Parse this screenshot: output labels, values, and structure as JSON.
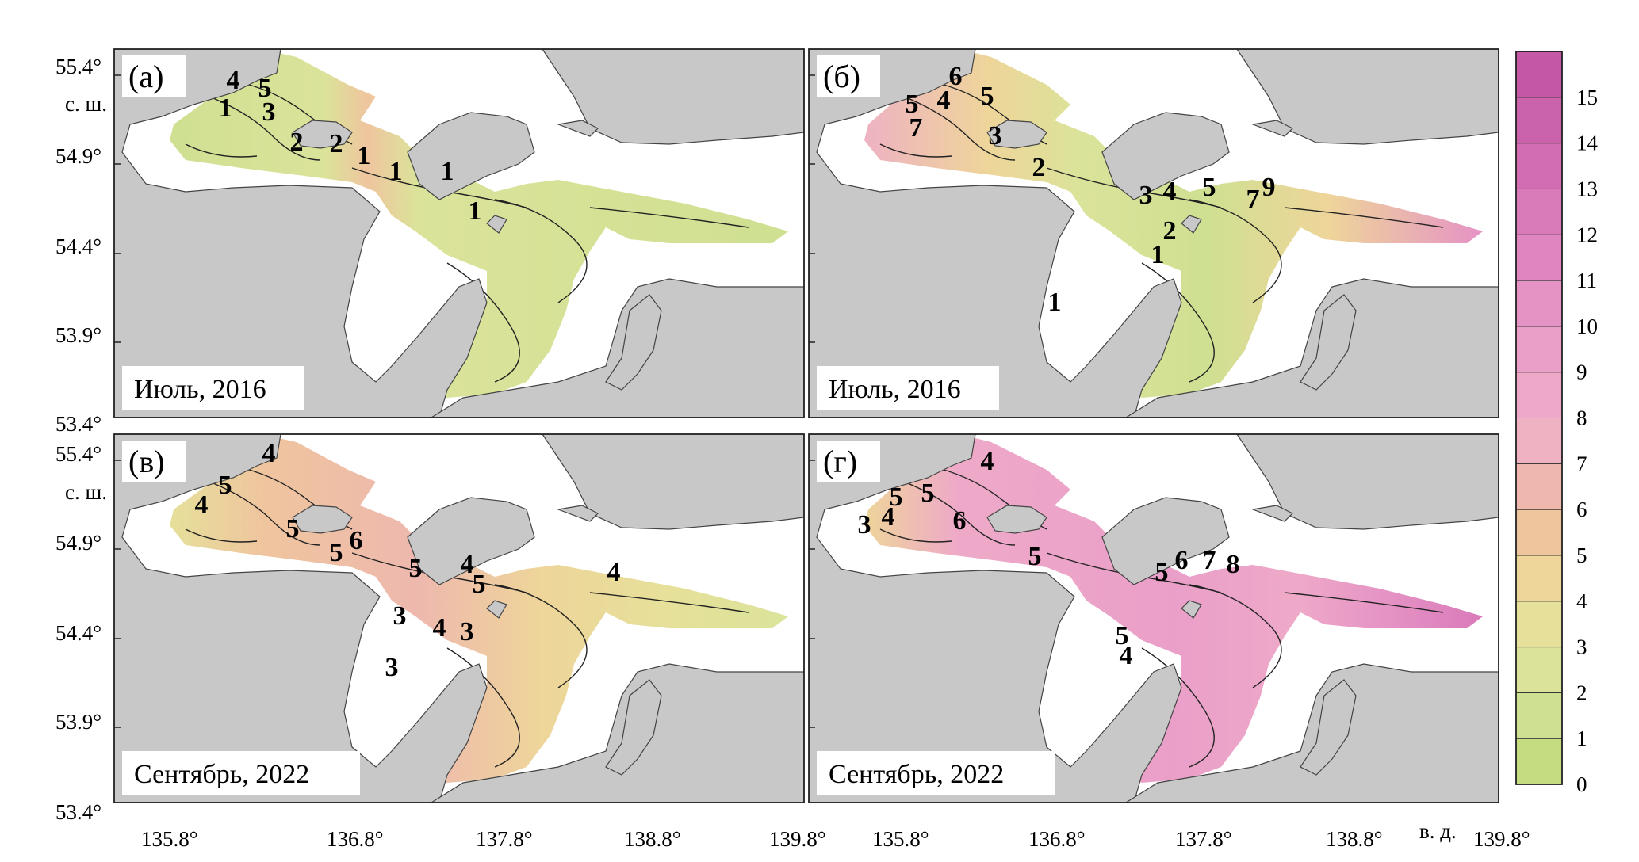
{
  "colors": {
    "land": "#c8c8c8",
    "land_stroke": "#444444",
    "sea": "#ffffff",
    "contour": "#222222"
  },
  "y_axis": {
    "ticks": [
      "55.4°",
      "54.9°",
      "54.4°",
      "53.9°",
      "53.4°"
    ],
    "unit": "с. ш."
  },
  "x_axis": {
    "ticks_left": [
      "135.8°",
      "136.8°",
      "137.8°",
      "138.8°",
      "139.8°"
    ],
    "ticks_right": [
      "135.8°",
      "136.8°",
      "137.8°",
      "138.8°",
      "139.8°"
    ],
    "unit": "в. д."
  },
  "color_scale": {
    "ticks": [
      "0",
      "1",
      "2",
      "3",
      "4",
      "5",
      "6",
      "7",
      "8",
      "9",
      "10",
      "11",
      "12",
      "13",
      "14",
      "15"
    ],
    "colors": [
      "#c5dc80",
      "#cfe092",
      "#dbe39a",
      "#e6e09a",
      "#eed59a",
      "#efc59e",
      "#eeb8ae",
      "#eeb2c2",
      "#eea9c8",
      "#ea9fc8",
      "#e592c5",
      "#df86c0",
      "#d97ab9",
      "#d26db3",
      "#cb62ac",
      "#c458a6"
    ]
  },
  "panels": [
    {
      "id": "a",
      "label": "(а)",
      "period": "Июль, 2016",
      "contour_labels": [
        {
          "text": "4",
          "x": 150,
          "y": 50
        },
        {
          "text": "5",
          "x": 190,
          "y": 60
        },
        {
          "text": "1",
          "x": 140,
          "y": 85
        },
        {
          "text": "3",
          "x": 195,
          "y": 90
        },
        {
          "text": "2",
          "x": 230,
          "y": 128
        },
        {
          "text": "2",
          "x": 280,
          "y": 130
        },
        {
          "text": "1",
          "x": 315,
          "y": 145
        },
        {
          "text": "1",
          "x": 355,
          "y": 165
        },
        {
          "text": "1",
          "x": 420,
          "y": 165
        },
        {
          "text": "1",
          "x": 455,
          "y": 215
        }
      ]
    },
    {
      "id": "b",
      "label": "(б)",
      "period": "Июль, 2016",
      "contour_labels": [
        {
          "text": "6",
          "x": 185,
          "y": 45
        },
        {
          "text": "5",
          "x": 225,
          "y": 70
        },
        {
          "text": "5",
          "x": 130,
          "y": 80
        },
        {
          "text": "4",
          "x": 170,
          "y": 75
        },
        {
          "text": "7",
          "x": 135,
          "y": 110
        },
        {
          "text": "3",
          "x": 235,
          "y": 120
        },
        {
          "text": "2",
          "x": 290,
          "y": 160
        },
        {
          "text": "3",
          "x": 425,
          "y": 195
        },
        {
          "text": "4",
          "x": 455,
          "y": 190
        },
        {
          "text": "5",
          "x": 505,
          "y": 185
        },
        {
          "text": "7",
          "x": 560,
          "y": 200
        },
        {
          "text": "9",
          "x": 580,
          "y": 185
        },
        {
          "text": "2",
          "x": 455,
          "y": 240
        },
        {
          "text": "1",
          "x": 440,
          "y": 270
        },
        {
          "text": "1",
          "x": 310,
          "y": 330
        }
      ]
    },
    {
      "id": "v",
      "label": "(в)",
      "period": "Сентябрь, 2022",
      "contour_labels": [
        {
          "text": "4",
          "x": 195,
          "y": 35
        },
        {
          "text": "5",
          "x": 140,
          "y": 75
        },
        {
          "text": "4",
          "x": 110,
          "y": 100
        },
        {
          "text": "5",
          "x": 225,
          "y": 130
        },
        {
          "text": "6",
          "x": 305,
          "y": 145
        },
        {
          "text": "5",
          "x": 280,
          "y": 160
        },
        {
          "text": "5",
          "x": 380,
          "y": 180
        },
        {
          "text": "4",
          "x": 445,
          "y": 175
        },
        {
          "text": "5",
          "x": 460,
          "y": 200
        },
        {
          "text": "4",
          "x": 630,
          "y": 185
        },
        {
          "text": "3",
          "x": 360,
          "y": 240
        },
        {
          "text": "4",
          "x": 410,
          "y": 255
        },
        {
          "text": "3",
          "x": 445,
          "y": 260
        },
        {
          "text": "3",
          "x": 350,
          "y": 305
        }
      ]
    },
    {
      "id": "g",
      "label": "(г)",
      "period": "Сентябрь, 2022",
      "contour_labels": [
        {
          "text": "4",
          "x": 225,
          "y": 45
        },
        {
          "text": "5",
          "x": 110,
          "y": 90
        },
        {
          "text": "5",
          "x": 150,
          "y": 85
        },
        {
          "text": "4",
          "x": 100,
          "y": 115
        },
        {
          "text": "3",
          "x": 70,
          "y": 125
        },
        {
          "text": "6",
          "x": 190,
          "y": 120
        },
        {
          "text": "5",
          "x": 285,
          "y": 165
        },
        {
          "text": "6",
          "x": 470,
          "y": 170
        },
        {
          "text": "7",
          "x": 505,
          "y": 170
        },
        {
          "text": "8",
          "x": 535,
          "y": 175
        },
        {
          "text": "5",
          "x": 445,
          "y": 185
        },
        {
          "text": "5",
          "x": 395,
          "y": 265
        },
        {
          "text": "4",
          "x": 400,
          "y": 290
        }
      ]
    }
  ]
}
